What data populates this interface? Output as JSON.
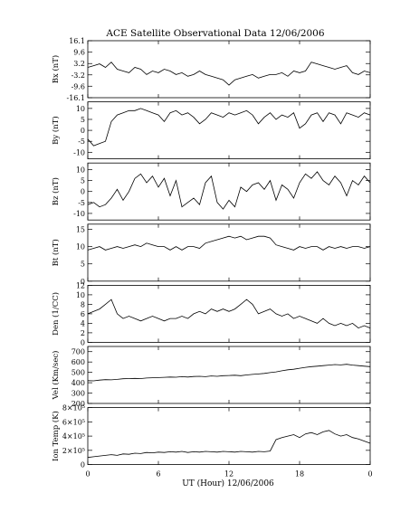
{
  "chart_data": {
    "type": "line",
    "title": "ACE Satellite Observational Data   12/06/2006",
    "xlabel": "UT (Hour)   12/06/2006",
    "x_ticks": [
      "0",
      "6",
      "12",
      "18",
      "0"
    ],
    "xlim": [
      0,
      24
    ],
    "grid": false,
    "panels": [
      {
        "ylabel": "Bx (nT)",
        "ylim": [
          -16.1,
          16.1
        ],
        "y_ticks": [
          "16.1",
          "9.6",
          "3.2",
          "-3.2",
          "-9.6",
          "-16.1"
        ],
        "x": [
          0,
          0.5,
          1,
          1.5,
          2,
          2.5,
          3,
          3.5,
          4,
          4.5,
          5,
          5.5,
          6,
          6.5,
          7,
          7.5,
          8,
          8.5,
          9,
          9.5,
          10,
          10.5,
          11,
          11.5,
          12,
          12.5,
          13,
          13.5,
          14,
          14.5,
          15,
          15.5,
          16,
          16.5,
          17,
          17.5,
          18,
          18.5,
          19,
          19.5,
          20,
          20.5,
          21,
          21.5,
          22,
          22.5,
          23,
          23.5,
          24
        ],
        "values": [
          1,
          2,
          3,
          1,
          4,
          0,
          -1,
          -2,
          1,
          0,
          -3,
          -1,
          -2,
          0,
          -1,
          -3,
          -2,
          -4,
          -3,
          -1,
          -3,
          -4,
          -5,
          -6,
          -9,
          -6,
          -5,
          -4,
          -3,
          -5,
          -4,
          -3,
          -3,
          -2,
          -4,
          -1,
          -2,
          -1,
          4,
          3,
          2,
          1,
          0,
          1,
          2,
          -2,
          -3,
          -1,
          -2
        ]
      },
      {
        "ylabel": "By (nT)",
        "ylim": [
          -13,
          13
        ],
        "y_ticks": [
          "10",
          "5",
          "0",
          "-5",
          "-10"
        ],
        "x": [
          0,
          0.5,
          1,
          1.5,
          2,
          2.5,
          3,
          3.5,
          4,
          4.5,
          5,
          5.5,
          6,
          6.5,
          7,
          7.5,
          8,
          8.5,
          9,
          9.5,
          10,
          10.5,
          11,
          11.5,
          12,
          12.5,
          13,
          13.5,
          14,
          14.5,
          15,
          15.5,
          16,
          16.5,
          17,
          17.5,
          18,
          18.5,
          19,
          19.5,
          20,
          20.5,
          21,
          21.5,
          22,
          22.5,
          23,
          23.5,
          24
        ],
        "values": [
          -4,
          -7,
          -6,
          -5,
          4,
          7,
          8,
          9,
          9,
          10,
          9,
          8,
          7,
          4,
          8,
          9,
          7,
          8,
          6,
          3,
          5,
          8,
          7,
          6,
          8,
          7,
          8,
          9,
          7,
          3,
          6,
          8,
          5,
          7,
          6,
          8,
          1,
          3,
          7,
          8,
          4,
          8,
          7,
          3,
          8,
          7,
          6,
          8,
          7
        ]
      },
      {
        "ylabel": "Bz (nT)",
        "ylim": [
          -13,
          13
        ],
        "y_ticks": [
          "10",
          "5",
          "0",
          "-5",
          "-10"
        ],
        "x": [
          0,
          0.5,
          1,
          1.5,
          2,
          2.5,
          3,
          3.5,
          4,
          4.5,
          5,
          5.5,
          6,
          6.5,
          7,
          7.5,
          8,
          8.5,
          9,
          9.5,
          10,
          10.5,
          11,
          11.5,
          12,
          12.5,
          13,
          13.5,
          14,
          14.5,
          15,
          15.5,
          16,
          16.5,
          17,
          17.5,
          18,
          18.5,
          19,
          19.5,
          20,
          20.5,
          21,
          21.5,
          22,
          22.5,
          23,
          23.5,
          24
        ],
        "values": [
          -6,
          -5,
          -7,
          -6,
          -3,
          1,
          -4,
          0,
          6,
          8,
          4,
          7,
          2,
          6,
          -2,
          5,
          -7,
          -5,
          -3,
          -6,
          4,
          7,
          -5,
          -8,
          -4,
          -7,
          2,
          0,
          3,
          4,
          1,
          5,
          -4,
          3,
          1,
          -3,
          4,
          8,
          6,
          9,
          5,
          3,
          7,
          4,
          -2,
          5,
          3,
          7,
          4
        ]
      },
      {
        "ylabel": "Bt (nT)",
        "ylim": [
          0,
          16.5
        ],
        "y_ticks": [
          "15",
          "10",
          "5",
          "0"
        ],
        "x": [
          0,
          0.5,
          1,
          1.5,
          2,
          2.5,
          3,
          3.5,
          4,
          4.5,
          5,
          5.5,
          6,
          6.5,
          7,
          7.5,
          8,
          8.5,
          9,
          9.5,
          10,
          10.5,
          11,
          11.5,
          12,
          12.5,
          13,
          13.5,
          14,
          14.5,
          15,
          15.5,
          16,
          16.5,
          17,
          17.5,
          18,
          18.5,
          19,
          19.5,
          20,
          20.5,
          21,
          21.5,
          22,
          22.5,
          23,
          23.5,
          24
        ],
        "values": [
          9,
          9.5,
          10,
          9,
          9.5,
          10,
          9.5,
          10,
          10.5,
          10,
          11,
          10.5,
          10,
          10,
          9,
          10,
          9,
          10,
          10,
          9.5,
          11,
          11.5,
          12,
          12.5,
          13,
          12.5,
          13,
          12,
          12.5,
          13,
          13,
          12.5,
          10.5,
          10,
          9.5,
          9,
          10,
          9.5,
          10,
          10,
          9,
          10,
          9.5,
          10,
          9.5,
          10,
          10,
          9.5,
          10
        ]
      },
      {
        "ylabel": "Den (1/CC)",
        "ylim": [
          0,
          12
        ],
        "y_ticks": [
          "12",
          "10",
          "8",
          "6",
          "4",
          "2",
          "0"
        ],
        "x": [
          0,
          0.5,
          1,
          1.5,
          2,
          2.5,
          3,
          3.5,
          4,
          4.5,
          5,
          5.5,
          6,
          6.5,
          7,
          7.5,
          8,
          8.5,
          9,
          9.5,
          10,
          10.5,
          11,
          11.5,
          12,
          12.5,
          13,
          13.5,
          14,
          14.5,
          15,
          15.5,
          16,
          16.5,
          17,
          17.5,
          18,
          18.5,
          19,
          19.5,
          20,
          20.5,
          21,
          21.5,
          22,
          22.5,
          23,
          23.5,
          24
        ],
        "values": [
          6,
          6.5,
          7,
          8,
          9,
          6,
          5,
          5.5,
          5,
          4.5,
          5,
          5.5,
          5,
          4.5,
          5,
          5,
          5.5,
          5,
          6,
          6.5,
          6,
          7,
          6.5,
          7,
          6.5,
          7,
          8,
          9,
          8,
          6,
          6.5,
          7,
          6,
          5.5,
          6,
          5,
          5.5,
          5,
          4.5,
          4,
          5,
          4,
          3.5,
          4,
          3.5,
          4,
          3,
          3.5,
          3
        ]
      },
      {
        "ylabel": "Vel (Km/sec)",
        "ylim": [
          200,
          750
        ],
        "y_ticks": [
          "700",
          "600",
          "500",
          "400",
          "300",
          "200"
        ],
        "x": [
          0,
          0.5,
          1,
          1.5,
          2,
          2.5,
          3,
          3.5,
          4,
          4.5,
          5,
          5.5,
          6,
          6.5,
          7,
          7.5,
          8,
          8.5,
          9,
          9.5,
          10,
          10.5,
          11,
          11.5,
          12,
          12.5,
          13,
          13.5,
          14,
          14.5,
          15,
          15.5,
          16,
          16.5,
          17,
          17.5,
          18,
          18.5,
          19,
          19.5,
          20,
          20.5,
          21,
          21.5,
          22,
          22.5,
          23,
          23.5,
          24
        ],
        "values": [
          420,
          418,
          425,
          430,
          428,
          432,
          438,
          440,
          442,
          440,
          445,
          448,
          450,
          452,
          455,
          453,
          458,
          455,
          460,
          462,
          458,
          465,
          462,
          468,
          470,
          472,
          468,
          475,
          480,
          485,
          490,
          498,
          505,
          515,
          525,
          530,
          540,
          548,
          555,
          560,
          565,
          570,
          575,
          572,
          578,
          570,
          565,
          560,
          555
        ]
      },
      {
        "ylabel": "Ion Temp (K)",
        "ylim": [
          0,
          800000
        ],
        "y_ticks": [
          "8×10⁵",
          "6×10⁵",
          "4×10⁵",
          "2×10⁵",
          "0"
        ],
        "x": [
          0,
          0.5,
          1,
          1.5,
          2,
          2.5,
          3,
          3.5,
          4,
          4.5,
          5,
          5.5,
          6,
          6.5,
          7,
          7.5,
          8,
          8.5,
          9,
          9.5,
          10,
          10.5,
          11,
          11.5,
          12,
          12.5,
          13,
          13.5,
          14,
          14.5,
          15,
          15.5,
          16,
          16.5,
          17,
          17.5,
          18,
          18.5,
          19,
          19.5,
          20,
          20.5,
          21,
          21.5,
          22,
          22.5,
          23,
          23.5,
          24
        ],
        "values": [
          100000,
          110000,
          120000,
          130000,
          140000,
          130000,
          150000,
          145000,
          160000,
          155000,
          170000,
          165000,
          175000,
          170000,
          180000,
          175000,
          185000,
          170000,
          180000,
          175000,
          185000,
          180000,
          175000,
          185000,
          180000,
          175000,
          185000,
          180000,
          175000,
          185000,
          180000,
          190000,
          350000,
          380000,
          400000,
          420000,
          380000,
          430000,
          450000,
          420000,
          460000,
          480000,
          430000,
          400000,
          420000,
          380000,
          360000,
          330000,
          300000
        ]
      }
    ]
  }
}
